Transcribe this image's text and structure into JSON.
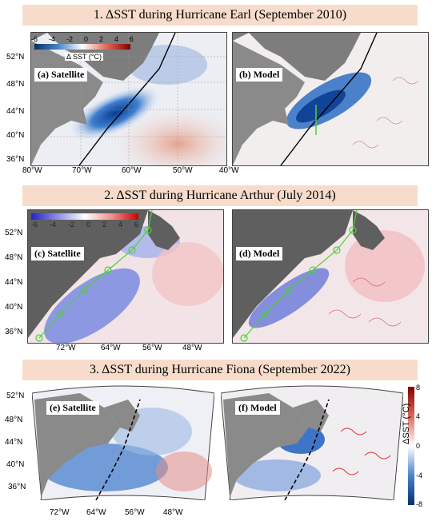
{
  "sections": [
    {
      "title": "1. ΔSST during Hurricane Earl (September 2010)",
      "panels": [
        {
          "label": "(a) Satellite"
        },
        {
          "label": "(b) Model"
        }
      ],
      "lat_ticks": [
        "52°N",
        "48°N",
        "44°N",
        "40°N",
        "36°N"
      ],
      "lon_ticks": [
        "80°W",
        "70°W",
        "60°W",
        "50°W",
        "40°W"
      ],
      "colorbar": {
        "ticks": [
          "-6",
          "-4",
          "-2",
          "0",
          "2",
          "4",
          "6"
        ],
        "label": "Δ SST (°C)"
      }
    },
    {
      "title": "2. ΔSST during Hurricane Arthur (July 2014)",
      "panels": [
        {
          "label": "(c) Satellite"
        },
        {
          "label": "(d) Model"
        }
      ],
      "lat_ticks": [
        "52°N",
        "48°N",
        "44°N",
        "40°N",
        "36°N"
      ],
      "lon_ticks": [
        "72°W",
        "64°W",
        "56°W",
        "48°W"
      ],
      "colorbar": {
        "ticks": [
          "-6",
          "-4",
          "-2",
          "0",
          "2",
          "4",
          "6"
        ]
      }
    },
    {
      "title": "3. ΔSST during Hurricane Fiona (September 2022)",
      "panels": [
        {
          "label": "(e) Satellite"
        },
        {
          "label": "(f) Model"
        }
      ],
      "lat_ticks": [
        "52°N",
        "48°N",
        "44°N",
        "40°N",
        "36°N"
      ],
      "lon_ticks": [
        "72°W",
        "64°W",
        "56°W",
        "48°W"
      ],
      "colorbar": {
        "ticks": [
          "8",
          "4",
          "0",
          "-4",
          "-8"
        ],
        "label": "ΔSST (°C)"
      }
    }
  ],
  "colors": {
    "cool": "#1f5fbf",
    "warm": "#d9342b",
    "land": "#8a8a8a",
    "earl_track": "#000000",
    "arthur_track": "#4cd137",
    "fiona_track": "#000000",
    "banner": "#f8dccb"
  }
}
